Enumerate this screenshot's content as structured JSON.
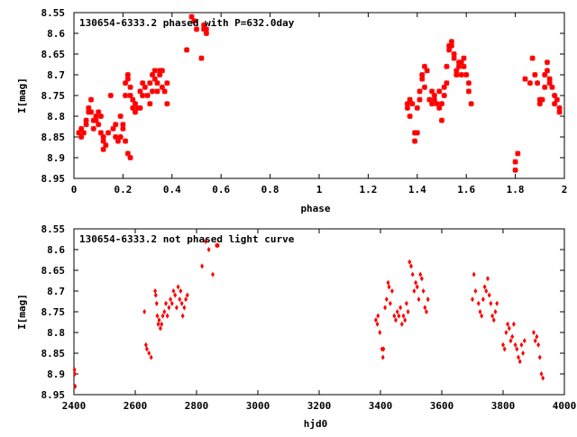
{
  "chart_data": [
    {
      "type": "scatter",
      "title": "130654-6333.2 phased with P=632.0day",
      "xlabel": "phase",
      "ylabel": "I[mag]",
      "xlim": [
        0,
        2
      ],
      "ylim": [
        8.95,
        8.55
      ],
      "y_inverted": true,
      "grid": false,
      "marker_color": "#ff0000",
      "marker": "star",
      "x_ticks": [
        "0",
        "0.2",
        "0.4",
        "0.6",
        "0.8",
        "1",
        "1.2",
        "1.4",
        "1.6",
        "1.8",
        "2"
      ],
      "y_ticks": [
        "8.55",
        "8.6",
        "8.65",
        "8.7",
        "8.75",
        "8.8",
        "8.85",
        "8.9",
        "8.95"
      ],
      "points": [
        [
          0.02,
          8.84
        ],
        [
          0.03,
          8.83
        ],
        [
          0.03,
          8.85
        ],
        [
          0.04,
          8.84
        ],
        [
          0.05,
          8.82
        ],
        [
          0.05,
          8.81
        ],
        [
          0.06,
          8.79
        ],
        [
          0.06,
          8.78
        ],
        [
          0.07,
          8.76
        ],
        [
          0.07,
          8.79
        ],
        [
          0.08,
          8.81
        ],
        [
          0.08,
          8.83
        ],
        [
          0.09,
          8.8
        ],
        [
          0.09,
          8.81
        ],
        [
          0.1,
          8.79
        ],
        [
          0.1,
          8.82
        ],
        [
          0.11,
          8.8
        ],
        [
          0.11,
          8.84
        ],
        [
          0.12,
          8.85
        ],
        [
          0.12,
          8.86
        ],
        [
          0.12,
          8.88
        ],
        [
          0.13,
          8.87
        ],
        [
          0.14,
          8.84
        ],
        [
          0.15,
          8.75
        ],
        [
          0.16,
          8.83
        ],
        [
          0.17,
          8.85
        ],
        [
          0.17,
          8.82
        ],
        [
          0.18,
          8.86
        ],
        [
          0.19,
          8.8
        ],
        [
          0.19,
          8.85
        ],
        [
          0.2,
          8.82
        ],
        [
          0.2,
          8.83
        ],
        [
          0.21,
          8.86
        ],
        [
          0.21,
          8.75
        ],
        [
          0.21,
          8.72
        ],
        [
          0.22,
          8.7
        ],
        [
          0.22,
          8.71
        ],
        [
          0.22,
          8.89
        ],
        [
          0.23,
          8.9
        ],
        [
          0.23,
          8.73
        ],
        [
          0.23,
          8.75
        ],
        [
          0.24,
          8.78
        ],
        [
          0.24,
          8.76
        ],
        [
          0.25,
          8.77
        ],
        [
          0.25,
          8.79
        ],
        [
          0.26,
          8.78
        ],
        [
          0.27,
          8.74
        ],
        [
          0.27,
          8.78
        ],
        [
          0.28,
          8.72
        ],
        [
          0.28,
          8.75
        ],
        [
          0.29,
          8.73
        ],
        [
          0.3,
          8.75
        ],
        [
          0.31,
          8.72
        ],
        [
          0.31,
          8.77
        ],
        [
          0.32,
          8.7
        ],
        [
          0.32,
          8.74
        ],
        [
          0.33,
          8.69
        ],
        [
          0.33,
          8.71
        ],
        [
          0.34,
          8.72
        ],
        [
          0.34,
          8.74
        ],
        [
          0.35,
          8.69
        ],
        [
          0.35,
          8.7
        ],
        [
          0.36,
          8.73
        ],
        [
          0.36,
          8.69
        ],
        [
          0.37,
          8.74
        ],
        [
          0.38,
          8.72
        ],
        [
          0.38,
          8.77
        ],
        [
          0.46,
          8.64
        ],
        [
          0.48,
          8.56
        ],
        [
          0.49,
          8.57
        ],
        [
          0.5,
          8.59
        ],
        [
          0.52,
          8.66
        ],
        [
          0.53,
          8.58
        ],
        [
          0.53,
          8.59
        ],
        [
          0.54,
          8.59
        ],
        [
          0.54,
          8.6
        ],
        [
          1.36,
          8.78
        ],
        [
          1.36,
          8.77
        ],
        [
          1.37,
          8.76
        ],
        [
          1.37,
          8.8
        ],
        [
          1.38,
          8.77
        ],
        [
          1.39,
          8.84
        ],
        [
          1.39,
          8.86
        ],
        [
          1.4,
          8.84
        ],
        [
          1.4,
          8.78
        ],
        [
          1.41,
          8.74
        ],
        [
          1.41,
          8.76
        ],
        [
          1.42,
          8.71
        ],
        [
          1.42,
          8.7
        ],
        [
          1.43,
          8.68
        ],
        [
          1.43,
          8.73
        ],
        [
          1.44,
          8.69
        ],
        [
          1.45,
          8.76
        ],
        [
          1.46,
          8.77
        ],
        [
          1.46,
          8.74
        ],
        [
          1.47,
          8.75
        ],
        [
          1.47,
          8.76
        ],
        [
          1.48,
          8.77
        ],
        [
          1.49,
          8.78
        ],
        [
          1.49,
          8.74
        ],
        [
          1.5,
          8.81
        ],
        [
          1.5,
          8.77
        ],
        [
          1.51,
          8.75
        ],
        [
          1.51,
          8.73
        ],
        [
          1.52,
          8.72
        ],
        [
          1.52,
          8.68
        ],
        [
          1.53,
          8.63
        ],
        [
          1.53,
          8.64
        ],
        [
          1.54,
          8.62
        ],
        [
          1.54,
          8.63
        ],
        [
          1.55,
          8.66
        ],
        [
          1.55,
          8.65
        ],
        [
          1.56,
          8.7
        ],
        [
          1.56,
          8.69
        ],
        [
          1.57,
          8.67
        ],
        [
          1.57,
          8.68
        ],
        [
          1.58,
          8.7
        ],
        [
          1.58,
          8.67
        ],
        [
          1.59,
          8.66
        ],
        [
          1.59,
          8.68
        ],
        [
          1.6,
          8.7
        ],
        [
          1.61,
          8.72
        ],
        [
          1.61,
          8.74
        ],
        [
          1.62,
          8.77
        ],
        [
          1.8,
          8.93
        ],
        [
          1.8,
          8.91
        ],
        [
          1.81,
          8.89
        ],
        [
          1.84,
          8.71
        ],
        [
          1.86,
          8.72
        ],
        [
          1.87,
          8.66
        ],
        [
          1.88,
          8.7
        ],
        [
          1.89,
          8.72
        ],
        [
          1.9,
          8.76
        ],
        [
          1.9,
          8.77
        ],
        [
          1.91,
          8.76
        ],
        [
          1.92,
          8.7
        ],
        [
          1.92,
          8.73
        ],
        [
          1.93,
          8.69
        ],
        [
          1.93,
          8.67
        ],
        [
          1.94,
          8.71
        ],
        [
          1.94,
          8.72
        ],
        [
          1.95,
          8.73
        ],
        [
          1.96,
          8.75
        ],
        [
          1.96,
          8.77
        ],
        [
          1.97,
          8.76
        ],
        [
          1.98,
          8.78
        ],
        [
          1.98,
          8.79
        ]
      ]
    },
    {
      "type": "scatter",
      "title": "130654-6333.2 not phased light curve",
      "xlabel": "hjd0",
      "ylabel": "I[mag]",
      "xlim": [
        2400,
        4000
      ],
      "ylim": [
        8.95,
        8.55
      ],
      "y_inverted": true,
      "grid": false,
      "marker_color": "#ff0000",
      "marker": "diamond",
      "x_ticks": [
        "2400",
        "2600",
        "2800",
        "3000",
        "3200",
        "3400",
        "3600",
        "3800",
        "4000"
      ],
      "y_ticks": [
        "8.55",
        "8.6",
        "8.65",
        "8.7",
        "8.75",
        "8.8",
        "8.85",
        "8.9",
        "8.95"
      ],
      "points": [
        [
          2402,
          8.89
        ],
        [
          2403,
          8.9
        ],
        [
          2404,
          8.93
        ],
        [
          2630,
          8.75
        ],
        [
          2635,
          8.83
        ],
        [
          2638,
          8.84
        ],
        [
          2645,
          8.85
        ],
        [
          2652,
          8.86
        ],
        [
          2665,
          8.7
        ],
        [
          2667,
          8.71
        ],
        [
          2670,
          8.73
        ],
        [
          2672,
          8.76
        ],
        [
          2675,
          8.78
        ],
        [
          2678,
          8.77
        ],
        [
          2682,
          8.79
        ],
        [
          2686,
          8.78
        ],
        [
          2690,
          8.76
        ],
        [
          2695,
          8.75
        ],
        [
          2700,
          8.73
        ],
        [
          2705,
          8.76
        ],
        [
          2710,
          8.74
        ],
        [
          2715,
          8.72
        ],
        [
          2720,
          8.73
        ],
        [
          2725,
          8.7
        ],
        [
          2730,
          8.71
        ],
        [
          2735,
          8.74
        ],
        [
          2740,
          8.69
        ],
        [
          2745,
          8.72
        ],
        [
          2748,
          8.7
        ],
        [
          2752,
          8.73
        ],
        [
          2755,
          8.76
        ],
        [
          2760,
          8.74
        ],
        [
          2765,
          8.72
        ],
        [
          2770,
          8.71
        ],
        [
          2818,
          8.64
        ],
        [
          2830,
          8.58
        ],
        [
          2840,
          8.6
        ],
        [
          2853,
          8.66
        ],
        [
          2865,
          8.59
        ],
        [
          2870,
          8.59
        ],
        [
          3385,
          8.77
        ],
        [
          3390,
          8.78
        ],
        [
          3392,
          8.76
        ],
        [
          3398,
          8.8
        ],
        [
          3405,
          8.84
        ],
        [
          3408,
          8.86
        ],
        [
          3410,
          8.84
        ],
        [
          3415,
          8.74
        ],
        [
          3420,
          8.72
        ],
        [
          3425,
          8.68
        ],
        [
          3428,
          8.69
        ],
        [
          3432,
          8.73
        ],
        [
          3438,
          8.7
        ],
        [
          3445,
          8.76
        ],
        [
          3450,
          8.77
        ],
        [
          3455,
          8.75
        ],
        [
          3460,
          8.76
        ],
        [
          3465,
          8.74
        ],
        [
          3470,
          8.78
        ],
        [
          3475,
          8.76
        ],
        [
          3480,
          8.77
        ],
        [
          3485,
          8.73
        ],
        [
          3490,
          8.75
        ],
        [
          3495,
          8.63
        ],
        [
          3500,
          8.64
        ],
        [
          3505,
          8.66
        ],
        [
          3510,
          8.7
        ],
        [
          3515,
          8.68
        ],
        [
          3520,
          8.69
        ],
        [
          3525,
          8.72
        ],
        [
          3530,
          8.66
        ],
        [
          3535,
          8.67
        ],
        [
          3540,
          8.7
        ],
        [
          3545,
          8.74
        ],
        [
          3550,
          8.75
        ],
        [
          3555,
          8.72
        ],
        [
          3700,
          8.72
        ],
        [
          3705,
          8.66
        ],
        [
          3710,
          8.7
        ],
        [
          3720,
          8.73
        ],
        [
          3725,
          8.75
        ],
        [
          3730,
          8.76
        ],
        [
          3735,
          8.72
        ],
        [
          3740,
          8.69
        ],
        [
          3745,
          8.7
        ],
        [
          3750,
          8.67
        ],
        [
          3755,
          8.71
        ],
        [
          3760,
          8.73
        ],
        [
          3765,
          8.76
        ],
        [
          3770,
          8.77
        ],
        [
          3775,
          8.75
        ],
        [
          3780,
          8.73
        ],
        [
          3800,
          8.83
        ],
        [
          3805,
          8.84
        ],
        [
          3810,
          8.8
        ],
        [
          3815,
          8.78
        ],
        [
          3820,
          8.79
        ],
        [
          3825,
          8.82
        ],
        [
          3830,
          8.81
        ],
        [
          3835,
          8.78
        ],
        [
          3840,
          8.83
        ],
        [
          3845,
          8.84
        ],
        [
          3850,
          8.86
        ],
        [
          3855,
          8.87
        ],
        [
          3860,
          8.83
        ],
        [
          3865,
          8.85
        ],
        [
          3870,
          8.82
        ],
        [
          3900,
          8.8
        ],
        [
          3905,
          8.82
        ],
        [
          3910,
          8.81
        ],
        [
          3915,
          8.83
        ],
        [
          3920,
          8.86
        ],
        [
          3925,
          8.9
        ],
        [
          3930,
          8.91
        ]
      ]
    }
  ]
}
